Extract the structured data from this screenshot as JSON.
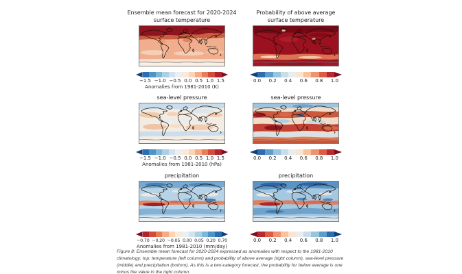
{
  "figure": {
    "background": "#ffffff",
    "column_headers": {
      "left": "Ensemble mean forecast for 2020-2024",
      "right": "Probability of above average"
    },
    "panels": [
      {
        "id": "surface-temperature-mean",
        "title": "surface temperature",
        "ticks": [
          "−1.5",
          "−1.0",
          "−0.5",
          "0.0",
          "0.5",
          "1.0",
          "1.5"
        ],
        "label": "Anomalies from 1981-2010 (K)"
      },
      {
        "id": "surface-temperature-probability",
        "title": "surface temperature",
        "ticks": [
          "0.0",
          "0.2",
          "0.4",
          "0.6",
          "0.8",
          "1.0"
        ],
        "label": ""
      },
      {
        "id": "sea-level-pressure-mean",
        "title": "sea-level pressure",
        "ticks": [
          "−1.5",
          "−1.0",
          "−0.5",
          "0.0",
          "0.5",
          "1.0",
          "1.5"
        ],
        "label": "Anomalies from 1981-2010 (hPa)"
      },
      {
        "id": "sea-level-pressure-probability",
        "title": "sea-level pressure",
        "ticks": [
          "0.0",
          "0.2",
          "0.4",
          "0.6",
          "0.8",
          "1.0"
        ],
        "label": ""
      },
      {
        "id": "precipitation-mean",
        "title": "precipitation",
        "ticks": [
          "−0.70",
          "−0.20",
          "−0.05",
          "0.00",
          "0.05",
          "0.20",
          "0.70"
        ],
        "label": "Anomalies from 1981-2010 (mm/day)"
      },
      {
        "id": "precipitation-probability",
        "title": "precipitation",
        "ticks": [
          "0.0",
          "0.2",
          "0.4",
          "0.6",
          "0.8",
          "1.0"
        ],
        "label": ""
      }
    ],
    "colorbar_colors": {
      "anomaly": [
        "#123f7c",
        "#2c6cb0",
        "#4f94c6",
        "#7db8da",
        "#abd0e6",
        "#d2e3ef",
        "#eceff1",
        "#f8ead9",
        "#fad4b5",
        "#f5ab84",
        "#e67e5a",
        "#d14c3b",
        "#b1232d",
        "#7f0d1d"
      ],
      "probability": [
        "#123f7c",
        "#2f6db2",
        "#5f9dca",
        "#99c4de",
        "#c8dcea",
        "#e9edef",
        "#f8e5d3",
        "#f8c29e",
        "#ef9270",
        "#dc5c48",
        "#b82a30",
        "#7f0d1d"
      ],
      "anomaly_reversed": [
        "#7f0d1d",
        "#b1232d",
        "#d14c3b",
        "#e67e5a",
        "#f5ab84",
        "#fad4b5",
        "#f8ead9",
        "#eceff1",
        "#d2e3ef",
        "#abd0e6",
        "#7db8da",
        "#4f94c6",
        "#2c6cb0",
        "#123f7c"
      ],
      "probability_reversed": [
        "#7f0d1d",
        "#b82a30",
        "#dc5c48",
        "#ef9270",
        "#f8c29e",
        "#f8e5d3",
        "#e9edef",
        "#c8dcea",
        "#99c4de",
        "#5f9dca",
        "#2f6db2",
        "#123f7c"
      ]
    },
    "caption": "Figure 8: Ensemble mean forecast  for 2020-2024 expressed as anomalies with respect to the 1981-2010 climatology: top: temperature (left column) and probability of above average (right column), sea-level pressure (middle) and precipitation (bottom). As this is a two-category forecast, the probability for below average is one minus the value in the right column."
  }
}
